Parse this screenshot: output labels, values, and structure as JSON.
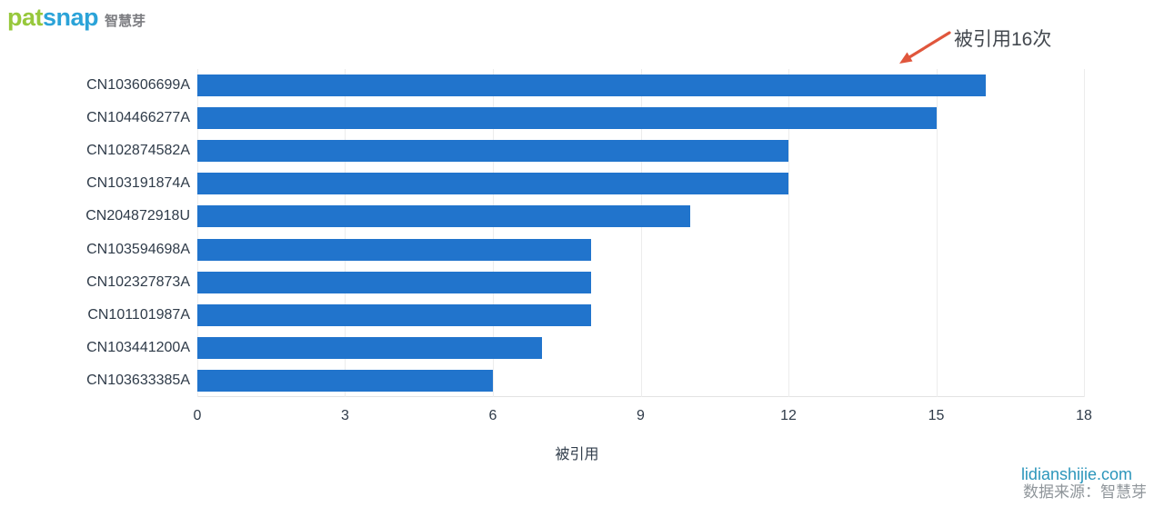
{
  "logo": {
    "pat": "pat",
    "snap": "snap",
    "suffix": "智慧芽",
    "pat_color": "#97c83c",
    "snap_color": "#2ba3d8",
    "suffix_color": "#7d7e82"
  },
  "annotation": {
    "text": "被引用16次",
    "arrow_color": "#e0563c"
  },
  "chart_data": {
    "type": "bar",
    "orientation": "horizontal",
    "title": "",
    "categories": [
      "CN103606699A",
      "CN104466277A",
      "CN102874582A",
      "CN103191874A",
      "CN204872918U",
      "CN103594698A",
      "CN102327873A",
      "CN101101987A",
      "CN103441200A",
      "CN103633385A"
    ],
    "values": [
      16,
      15,
      12,
      12,
      10,
      8,
      8,
      8,
      7,
      6
    ],
    "xlabel": "被引用",
    "ylabel": "",
    "xlim": [
      0,
      18
    ],
    "xticks": [
      0,
      3,
      6,
      9,
      12,
      15,
      18
    ],
    "grid": true,
    "legend": "none",
    "bar_color": "#2174cc",
    "label_color": "#2f3b49",
    "grid_color": "#ececec"
  },
  "footer": {
    "watermark": "lidianshijie.com",
    "source": "数据来源：智慧芽",
    "watermark_color": "#2c96bb",
    "source_color": "#8f959a"
  }
}
